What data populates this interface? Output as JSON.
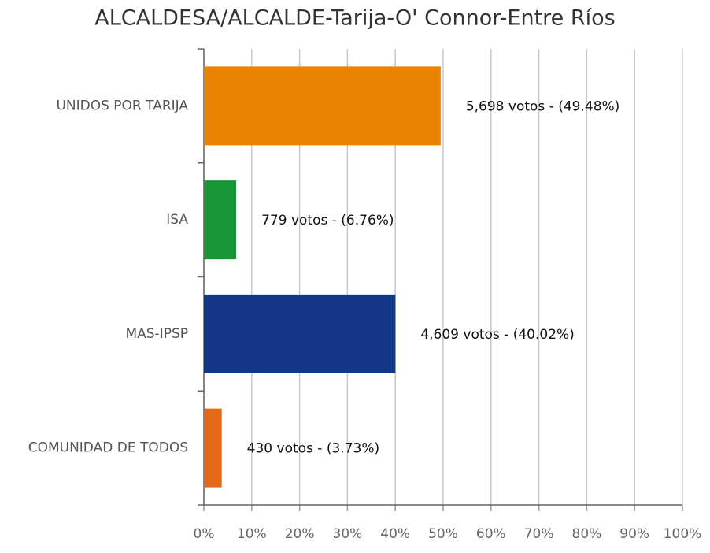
{
  "chart_data": {
    "type": "hbar",
    "title": "ALCALDESA/ALCALDE-Tarija-O' Connor-Entre Ríos",
    "categories": [
      "UNIDOS POR TARIJA",
      "ISA",
      "MAS-IPSP",
      "COMUNIDAD DE TODOS"
    ],
    "values": [
      49.48,
      6.76,
      40.02,
      3.73
    ],
    "value_labels": [
      "5,698 votos - (49.48%)",
      "779 votos - (6.76%)",
      "4,609 votos - (40.02%)",
      "430 votos - (3.73%)"
    ],
    "colors": [
      "#e98300",
      "#169634",
      "#123787",
      "#e56a17"
    ],
    "xlim": [
      0,
      100
    ],
    "xticks": [
      {
        "value": 0,
        "label": "0%"
      },
      {
        "value": 10,
        "label": "10%"
      },
      {
        "value": 20,
        "label": "20%"
      },
      {
        "value": 30,
        "label": "30%"
      },
      {
        "value": 40,
        "label": "40%"
      },
      {
        "value": 50,
        "label": "50%"
      },
      {
        "value": 60,
        "label": "60%"
      },
      {
        "value": 70,
        "label": "70%"
      },
      {
        "value": 80,
        "label": "80%"
      },
      {
        "value": 90,
        "label": "90%"
      },
      {
        "value": 100,
        "label": "100%"
      }
    ],
    "grid": true
  }
}
